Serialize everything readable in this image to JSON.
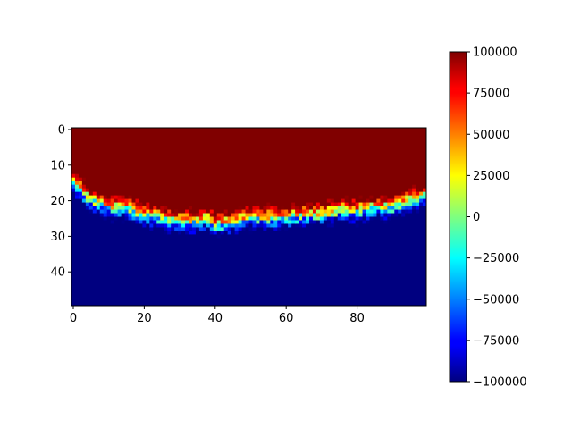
{
  "chart_data": {
    "type": "heatmap",
    "title": "",
    "xlabel": "",
    "ylabel": "",
    "grid": false,
    "n_rows": 50,
    "n_cols": 100,
    "xlim": [
      -0.5,
      99.5
    ],
    "ylim": [
      49.5,
      -0.5
    ],
    "x_ticks": [
      0,
      20,
      40,
      60,
      80
    ],
    "x_tick_labels": [
      "0",
      "20",
      "40",
      "60",
      "80"
    ],
    "y_ticks": [
      0,
      10,
      20,
      30,
      40
    ],
    "y_tick_labels": [
      "0",
      "10",
      "20",
      "30",
      "40"
    ],
    "colormap": "jet",
    "vmin": -100000,
    "vmax": 100000,
    "colorbar": {
      "placement": "right",
      "ticks": [
        -100000,
        -75000,
        -50000,
        -25000,
        0,
        25000,
        50000,
        75000,
        100000
      ],
      "tick_labels": [
        "−100000",
        "−75000",
        "−50000",
        "−25000",
        "0",
        "25000",
        "50000",
        "75000",
        "100000"
      ]
    },
    "values_description": "Rows 0–10 are saturated at 100000; a transition band near rows 17–30 drops from ~100000 to −100000 (deeper near columns 15–45); rows below ~30 are saturated at −100000.",
    "interface_depth": [
      {
        "col": 0,
        "row": 15
      },
      {
        "col": 5,
        "row": 20
      },
      {
        "col": 10,
        "row": 22
      },
      {
        "col": 15,
        "row": 22
      },
      {
        "col": 20,
        "row": 24
      },
      {
        "col": 25,
        "row": 25
      },
      {
        "col": 30,
        "row": 26
      },
      {
        "col": 35,
        "row": 26
      },
      {
        "col": 38,
        "row": 25
      },
      {
        "col": 40,
        "row": 27
      },
      {
        "col": 45,
        "row": 26
      },
      {
        "col": 50,
        "row": 25
      },
      {
        "col": 55,
        "row": 25
      },
      {
        "col": 60,
        "row": 25
      },
      {
        "col": 65,
        "row": 24
      },
      {
        "col": 70,
        "row": 24
      },
      {
        "col": 75,
        "row": 23
      },
      {
        "col": 80,
        "row": 23
      },
      {
        "col": 85,
        "row": 22
      },
      {
        "col": 90,
        "row": 22
      },
      {
        "col": 95,
        "row": 20
      },
      {
        "col": 99,
        "row": 19
      }
    ]
  }
}
